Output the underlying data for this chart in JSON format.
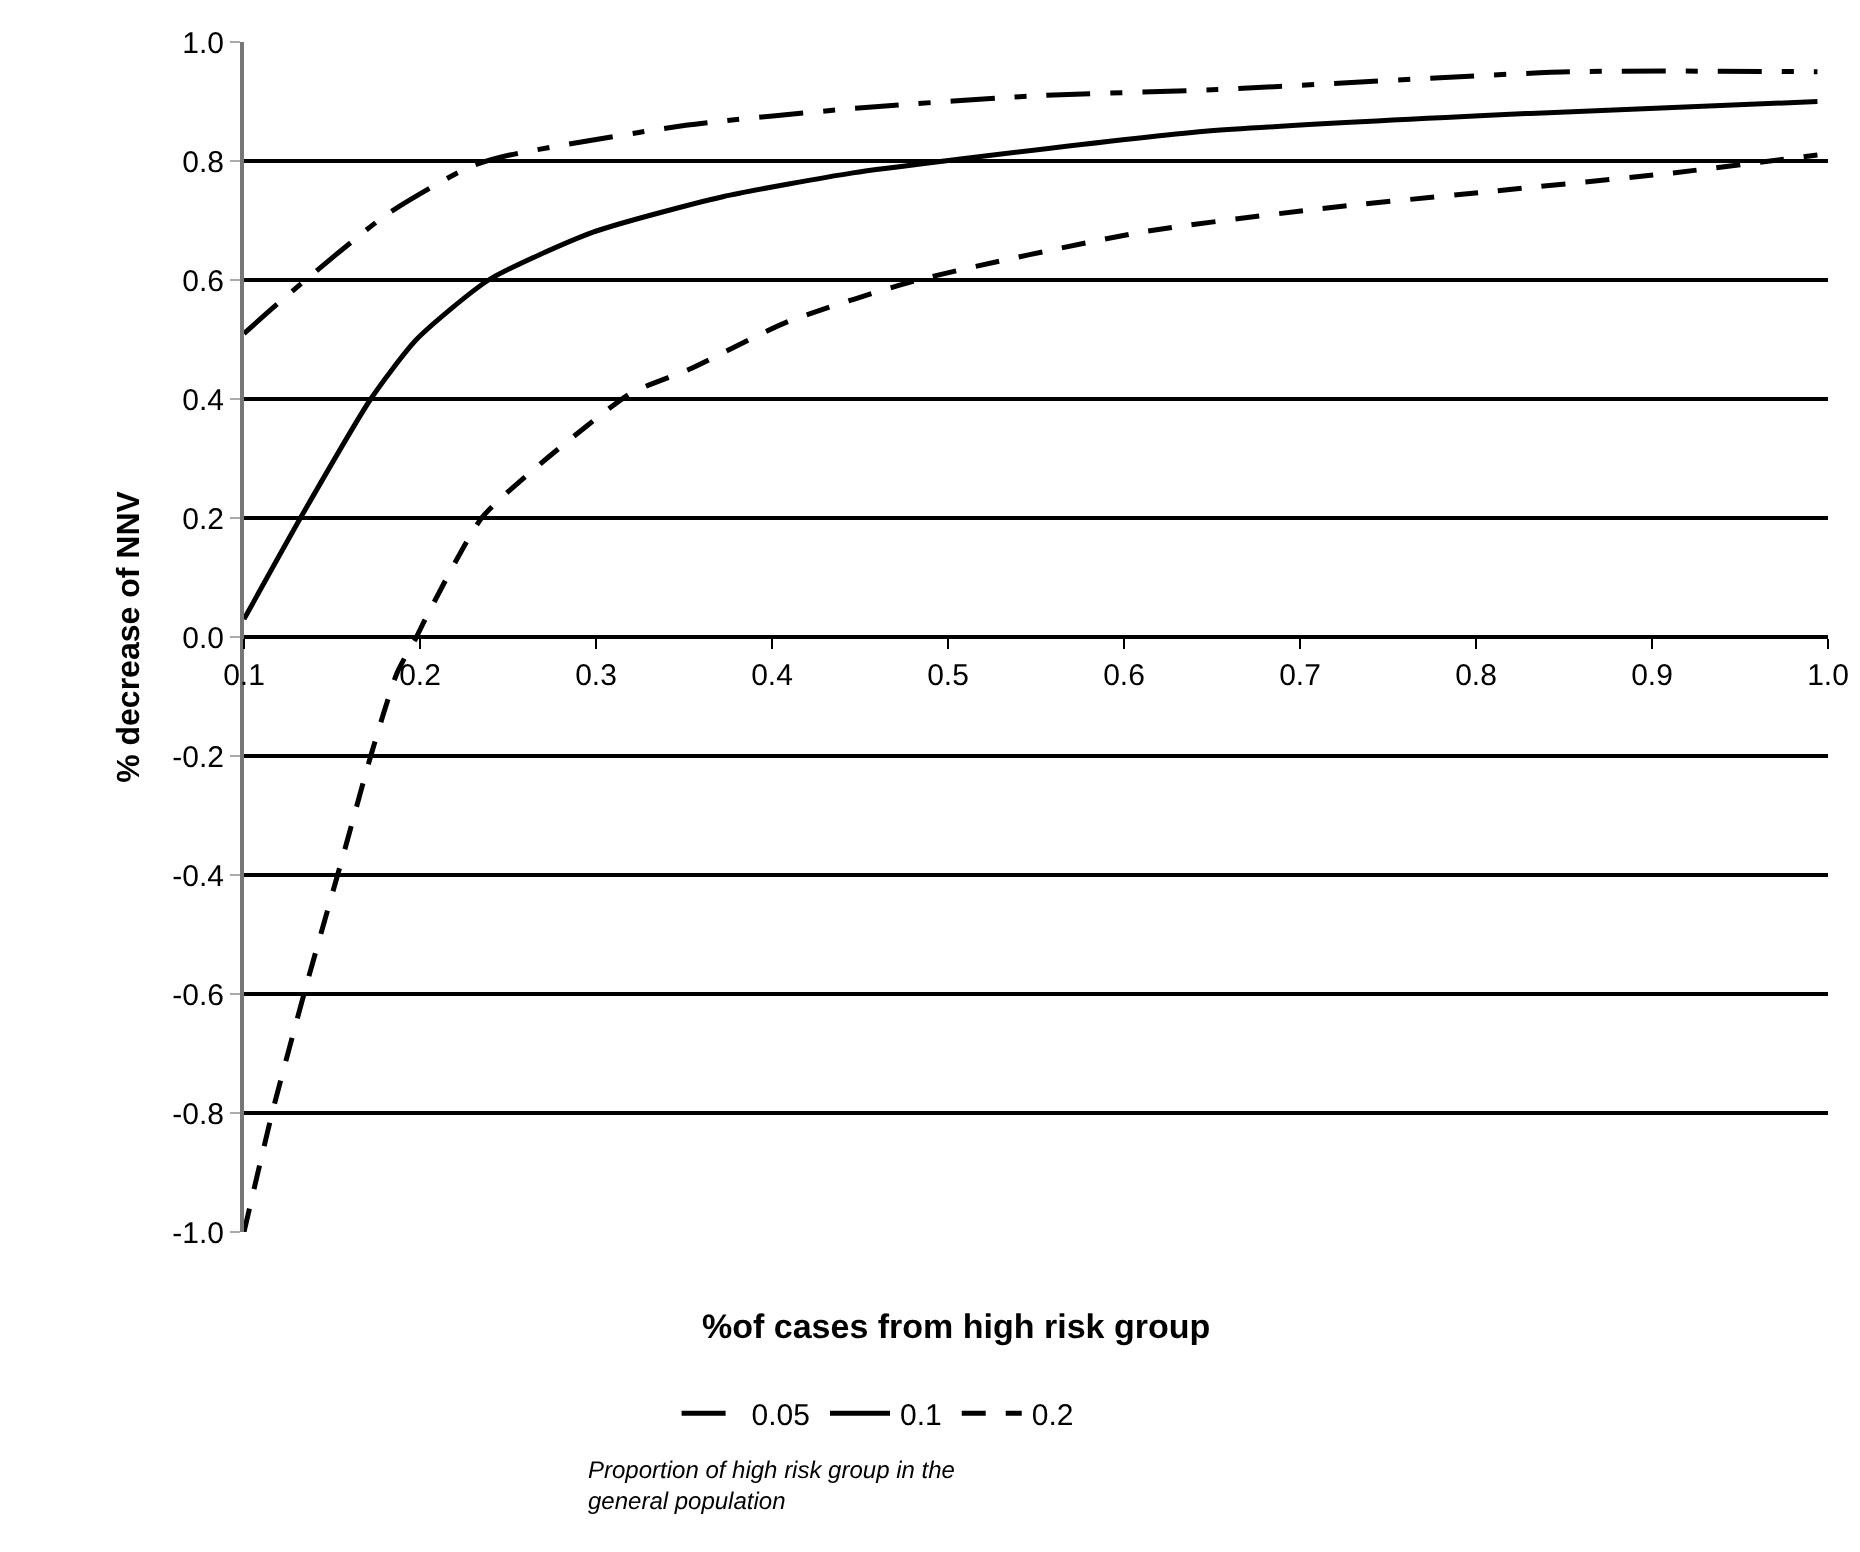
{
  "chart_data": {
    "type": "line",
    "xlabel": "%of cases from high risk group",
    "ylabel": "% decrease of NNV",
    "legend_title": "Proportion of high risk group in the general population",
    "legend": "bottom",
    "grid": "y",
    "xlim": [
      0.1,
      1.0
    ],
    "ylim": [
      -1.0,
      1.0
    ],
    "xticks": [
      0.1,
      0.2,
      0.3,
      0.4,
      0.5,
      0.6,
      0.7,
      0.8,
      0.9,
      {
        "value": 1.0,
        "label": "1.0"
      }
    ],
    "yticks": [
      {
        "value": -1.0,
        "label": "-1.0"
      },
      -0.8,
      -0.6,
      -0.4,
      -0.2,
      {
        "value": 0,
        "label": "0.0"
      },
      0.2,
      0.4,
      0.6,
      0.8,
      {
        "value": 1.0,
        "label": "1.0"
      }
    ],
    "series": [
      {
        "name": "0.05",
        "color": "#000000",
        "line_style": "dashdot",
        "x": [
          0.1,
          0.123,
          0.181,
          0.228,
          0.251,
          0.351,
          0.453,
          0.553,
          0.653,
          0.853,
          0.994
        ],
        "values": [
          0.51,
          0.57,
          0.71,
          0.79,
          0.81,
          0.86,
          0.89,
          0.91,
          0.92,
          0.95,
          0.95
        ]
      },
      {
        "name": "0.1",
        "color": "#000000",
        "line_style": "solid",
        "x": [
          0.1,
          0.134,
          0.172,
          0.198,
          0.239,
          0.298,
          0.372,
          0.446,
          0.498,
          0.646,
          0.831,
          0.994
        ],
        "values": [
          0.03,
          0.21,
          0.4,
          0.5,
          0.6,
          0.68,
          0.74,
          0.78,
          0.8,
          0.85,
          0.88,
          0.9
        ]
      },
      {
        "name": "0.2",
        "color": "#000000",
        "line_style": "dashed",
        "x": [
          0.1,
          0.116,
          0.135,
          0.157,
          0.172,
          0.187,
          0.198,
          0.203,
          0.235,
          0.272,
          0.32,
          0.353,
          0.409,
          0.483,
          0.609,
          0.712,
          0.812,
          0.912,
          0.994
        ],
        "values": [
          -1.0,
          -0.8,
          -0.59,
          -0.36,
          -0.2,
          -0.06,
          0.0,
          0.03,
          0.2,
          0.3,
          0.41,
          0.45,
          0.53,
          0.6,
          0.68,
          0.72,
          0.75,
          0.78,
          0.81
        ]
      }
    ]
  }
}
